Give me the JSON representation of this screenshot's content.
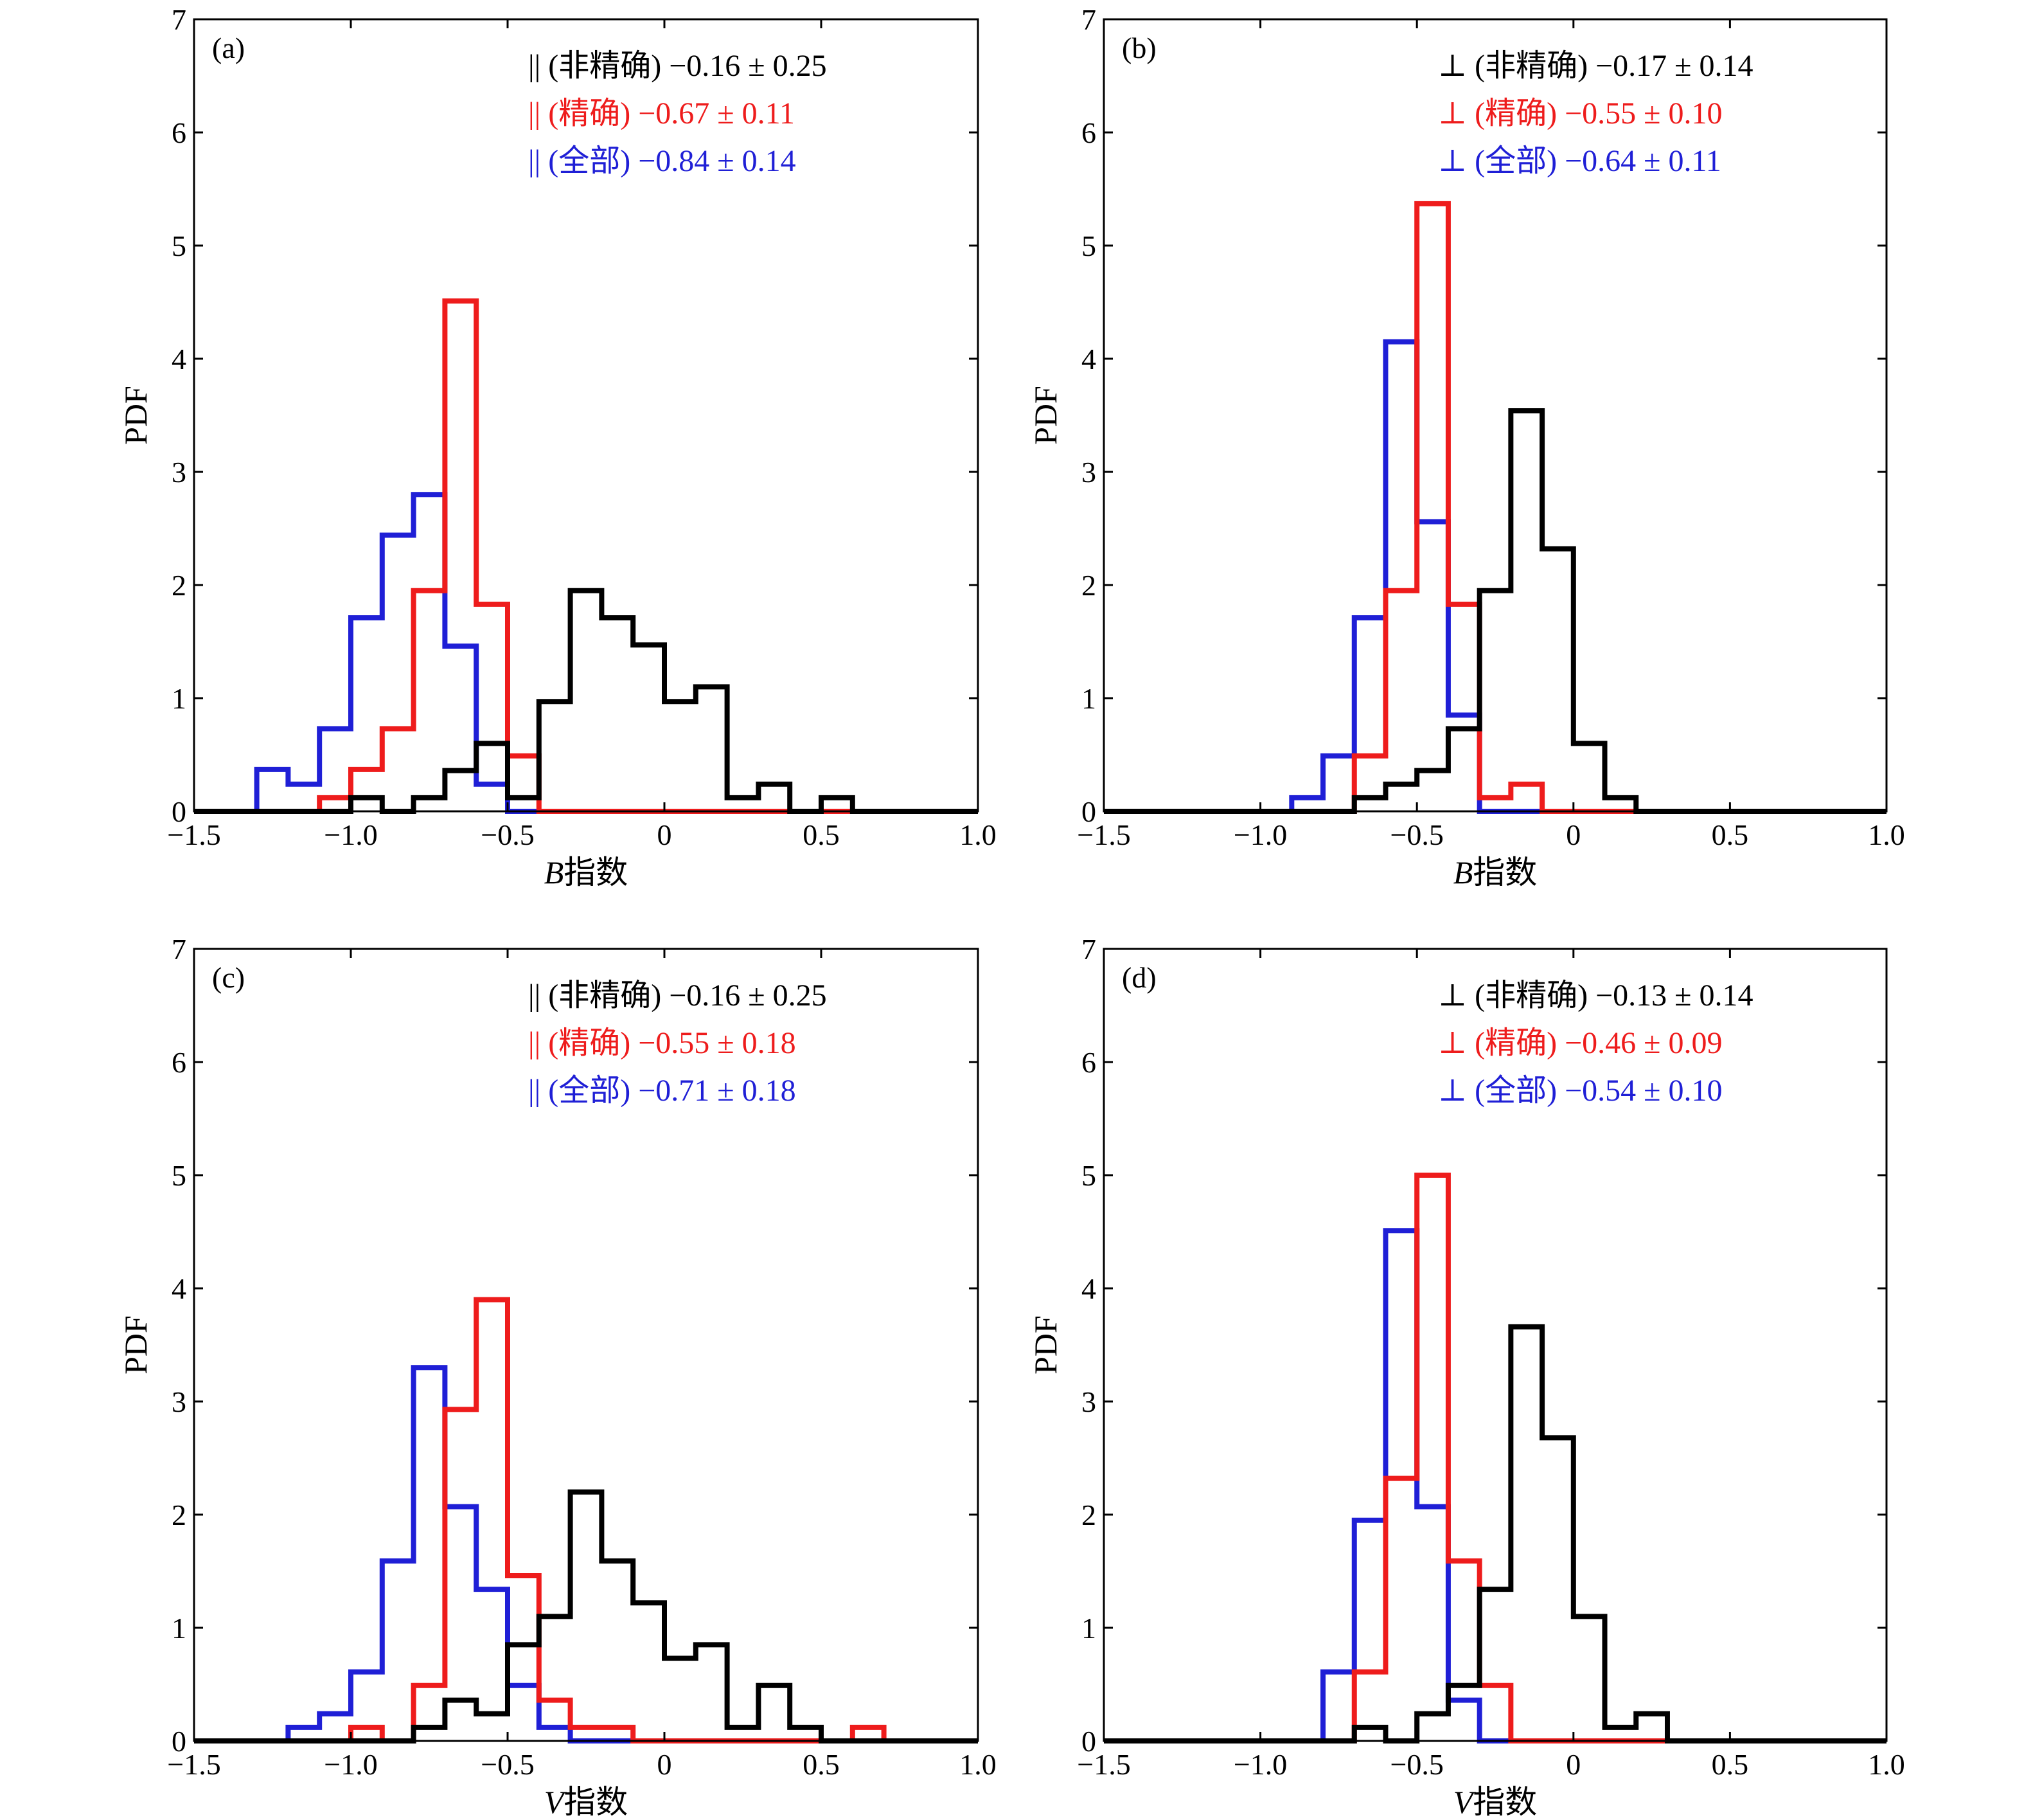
{
  "colors": {
    "non_precise": "#000000",
    "precise": "#ee1c1c",
    "all": "#1f1fd6",
    "axis": "#000000"
  },
  "chart_data": [
    {
      "type": "histogram",
      "panel": "(a)",
      "xlabel_italic": "B",
      "xlabel_rest": "指数",
      "ylabel": "PDF",
      "xlim": [
        -1.5,
        1.0
      ],
      "ylim": [
        0,
        7
      ],
      "xticks": [
        "−1.5",
        "−1.0",
        "−0.5",
        "0",
        "0.5",
        "1.0"
      ],
      "xtick_values": [
        -1.5,
        -1.0,
        -0.5,
        0,
        0.5,
        1.0
      ],
      "yticks": [
        "0",
        "1",
        "2",
        "3",
        "4",
        "5",
        "6",
        "7"
      ],
      "yticks_values": [
        0,
        1,
        2,
        3,
        4,
        5,
        6,
        7
      ],
      "bin_edges": [
        -1.5,
        -1.4,
        -1.3,
        -1.2,
        -1.1,
        -1.0,
        -0.9,
        -0.8,
        -0.7,
        -0.6,
        -0.5,
        -0.4,
        -0.3,
        -0.2,
        -0.1,
        0.0,
        0.1,
        0.2,
        0.3,
        0.4,
        0.5,
        0.6,
        0.7,
        0.8,
        0.9,
        1.0
      ],
      "series": [
        {
          "name": "|| (非精确) −0.16 ± 0.25",
          "color_key": "non_precise",
          "values": [
            0,
            0,
            0,
            0,
            0,
            0.12,
            0,
            0.12,
            0.36,
            0.6,
            0.12,
            0.97,
            1.95,
            1.71,
            1.47,
            0.97,
            1.1,
            0.12,
            0.24,
            0,
            0.12,
            0,
            0,
            0,
            0
          ]
        },
        {
          "name": "|| (精确) −0.67 ± 0.11",
          "color_key": "precise",
          "values": [
            0,
            0,
            0,
            0,
            0.12,
            0.37,
            0.73,
            1.95,
            4.51,
            1.83,
            0.49,
            0,
            0,
            0,
            0,
            0,
            0,
            0,
            0,
            0,
            0,
            0,
            0,
            0,
            0
          ]
        },
        {
          "name": "|| (全部) −0.84 ± 0.14",
          "color_key": "all",
          "values": [
            0,
            0,
            0.37,
            0.24,
            0.73,
            1.71,
            2.44,
            2.8,
            1.46,
            0.24,
            0,
            0,
            0,
            0,
            0,
            0,
            0,
            0,
            0,
            0,
            0,
            0,
            0,
            0,
            0
          ]
        }
      ],
      "legend": [
        {
          "text": "|| (非精确) −0.16 ± 0.25",
          "color_key": "non_precise"
        },
        {
          "text": "|| (精确) −0.67 ± 0.11",
          "color_key": "precise"
        },
        {
          "text": "|| (全部) −0.84 ± 0.14",
          "color_key": "all"
        }
      ]
    },
    {
      "type": "histogram",
      "panel": "(b)",
      "xlabel_italic": "B",
      "xlabel_rest": "指数",
      "ylabel": "PDF",
      "xlim": [
        -1.5,
        1.0
      ],
      "ylim": [
        0,
        7
      ],
      "xticks": [
        "−1.5",
        "−1.0",
        "−0.5",
        "0",
        "0.5",
        "1.0"
      ],
      "xtick_values": [
        -1.5,
        -1.0,
        -0.5,
        0,
        0.5,
        1.0
      ],
      "yticks": [
        "0",
        "1",
        "2",
        "3",
        "4",
        "5",
        "6",
        "7"
      ],
      "yticks_values": [
        0,
        1,
        2,
        3,
        4,
        5,
        6,
        7
      ],
      "bin_edges": [
        -1.5,
        -1.4,
        -1.3,
        -1.2,
        -1.1,
        -1.0,
        -0.9,
        -0.8,
        -0.7,
        -0.6,
        -0.5,
        -0.4,
        -0.3,
        -0.2,
        -0.1,
        0.0,
        0.1,
        0.2,
        0.3,
        0.4,
        0.5,
        0.6,
        0.7,
        0.8,
        0.9,
        1.0
      ],
      "series": [
        {
          "name": "⊥ (非精确) −0.17 ± 0.14",
          "color_key": "non_precise",
          "values": [
            0,
            0,
            0,
            0,
            0,
            0,
            0,
            0,
            0.12,
            0.24,
            0.36,
            0.73,
            1.95,
            3.54,
            2.32,
            0.6,
            0.12,
            0,
            0,
            0,
            0,
            0,
            0,
            0,
            0
          ]
        },
        {
          "name": "⊥ (精确) −0.55 ± 0.10",
          "color_key": "precise",
          "values": [
            0,
            0,
            0,
            0,
            0,
            0,
            0,
            0,
            0.49,
            1.95,
            5.37,
            1.83,
            0.12,
            0.24,
            0,
            0,
            0,
            0,
            0,
            0,
            0,
            0,
            0,
            0,
            0
          ]
        },
        {
          "name": "⊥ (全部) −0.64 ± 0.11",
          "color_key": "all",
          "values": [
            0,
            0,
            0,
            0,
            0,
            0,
            0.12,
            0.49,
            1.71,
            4.15,
            2.56,
            0.85,
            0,
            0,
            0,
            0,
            0,
            0,
            0,
            0,
            0,
            0,
            0,
            0,
            0
          ]
        }
      ],
      "legend": [
        {
          "text": "⊥ (非精确) −0.17 ± 0.14",
          "color_key": "non_precise"
        },
        {
          "text": "⊥ (精确) −0.55 ± 0.10",
          "color_key": "precise"
        },
        {
          "text": "⊥ (全部) −0.64 ± 0.11",
          "color_key": "all"
        }
      ]
    },
    {
      "type": "histogram",
      "panel": "(c)",
      "xlabel_italic": "V",
      "xlabel_rest": "指数",
      "ylabel": "PDF",
      "xlim": [
        -1.5,
        1.0
      ],
      "ylim": [
        0,
        7
      ],
      "xticks": [
        "−1.5",
        "−1.0",
        "−0.5",
        "0",
        "0.5",
        "1.0"
      ],
      "xtick_values": [
        -1.5,
        -1.0,
        -0.5,
        0,
        0.5,
        1.0
      ],
      "yticks": [
        "0",
        "1",
        "2",
        "3",
        "4",
        "5",
        "6",
        "7"
      ],
      "yticks_values": [
        0,
        1,
        2,
        3,
        4,
        5,
        6,
        7
      ],
      "bin_edges": [
        -1.5,
        -1.4,
        -1.3,
        -1.2,
        -1.1,
        -1.0,
        -0.9,
        -0.8,
        -0.7,
        -0.6,
        -0.5,
        -0.4,
        -0.3,
        -0.2,
        -0.1,
        0.0,
        0.1,
        0.2,
        0.3,
        0.4,
        0.5,
        0.6,
        0.7,
        0.8,
        0.9,
        1.0
      ],
      "series": [
        {
          "name": "|| (非精确) −0.16 ± 0.25",
          "color_key": "non_precise",
          "values": [
            0,
            0,
            0,
            0,
            0,
            0,
            0,
            0.12,
            0.36,
            0.24,
            0.85,
            1.1,
            2.2,
            1.59,
            1.22,
            0.73,
            0.85,
            0.12,
            0.49,
            0.12,
            0,
            0,
            0,
            0,
            0
          ]
        },
        {
          "name": "|| (精确) −0.55 ± 0.18",
          "color_key": "precise",
          "values": [
            0,
            0,
            0,
            0,
            0,
            0.12,
            0,
            0.49,
            2.93,
            3.9,
            1.46,
            0.36,
            0.12,
            0.12,
            0,
            0,
            0,
            0,
            0,
            0,
            0,
            0.12,
            0,
            0,
            0
          ]
        },
        {
          "name": "|| (全部) −0.71 ± 0.18",
          "color_key": "all",
          "values": [
            0,
            0,
            0,
            0.12,
            0.24,
            0.61,
            1.59,
            3.3,
            2.07,
            1.34,
            0.49,
            0.12,
            0,
            0,
            0,
            0,
            0,
            0,
            0,
            0,
            0,
            0,
            0,
            0,
            0
          ]
        }
      ],
      "legend": [
        {
          "text": "|| (非精确) −0.16 ± 0.25",
          "color_key": "non_precise"
        },
        {
          "text": "|| (精确) −0.55 ± 0.18",
          "color_key": "precise"
        },
        {
          "text": "|| (全部) −0.71 ± 0.18",
          "color_key": "all"
        }
      ]
    },
    {
      "type": "histogram",
      "panel": "(d)",
      "xlabel_italic": "V",
      "xlabel_rest": "指数",
      "ylabel": "PDF",
      "xlim": [
        -1.5,
        1.0
      ],
      "ylim": [
        0,
        7
      ],
      "xticks": [
        "−1.5",
        "−1.0",
        "−0.5",
        "0",
        "0.5",
        "1.0"
      ],
      "xtick_values": [
        -1.5,
        -1.0,
        -0.5,
        0,
        0.5,
        1.0
      ],
      "yticks": [
        "0",
        "1",
        "2",
        "3",
        "4",
        "5",
        "6",
        "7"
      ],
      "yticks_values": [
        0,
        1,
        2,
        3,
        4,
        5,
        6,
        7
      ],
      "bin_edges": [
        -1.5,
        -1.4,
        -1.3,
        -1.2,
        -1.1,
        -1.0,
        -0.9,
        -0.8,
        -0.7,
        -0.6,
        -0.5,
        -0.4,
        -0.3,
        -0.2,
        -0.1,
        0.0,
        0.1,
        0.2,
        0.3,
        0.4,
        0.5,
        0.6,
        0.7,
        0.8,
        0.9,
        1.0
      ],
      "series": [
        {
          "name": "⊥ (非精确) −0.13 ± 0.14",
          "color_key": "non_precise",
          "values": [
            0,
            0,
            0,
            0,
            0,
            0,
            0,
            0,
            0.12,
            0,
            0.24,
            0.49,
            1.34,
            3.66,
            2.68,
            1.1,
            0.12,
            0.24,
            0,
            0,
            0,
            0,
            0,
            0,
            0
          ]
        },
        {
          "name": "⊥ (精确) −0.46 ± 0.09",
          "color_key": "precise",
          "values": [
            0,
            0,
            0,
            0,
            0,
            0,
            0,
            0,
            0.61,
            2.32,
            5.0,
            1.59,
            0.49,
            0,
            0,
            0,
            0,
            0,
            0,
            0,
            0,
            0,
            0,
            0,
            0
          ]
        },
        {
          "name": "⊥ (全部) −0.54 ± 0.10",
          "color_key": "all",
          "values": [
            0,
            0,
            0,
            0,
            0,
            0,
            0,
            0.61,
            1.95,
            4.51,
            2.07,
            0.36,
            0,
            0,
            0,
            0,
            0,
            0,
            0,
            0,
            0,
            0,
            0,
            0,
            0
          ]
        }
      ],
      "legend": [
        {
          "text": "⊥ (非精确) −0.13 ± 0.14",
          "color_key": "non_precise"
        },
        {
          "text": "⊥ (精确) −0.46 ± 0.09",
          "color_key": "precise"
        },
        {
          "text": "⊥ (全部) −0.54 ± 0.10",
          "color_key": "all"
        }
      ]
    }
  ]
}
